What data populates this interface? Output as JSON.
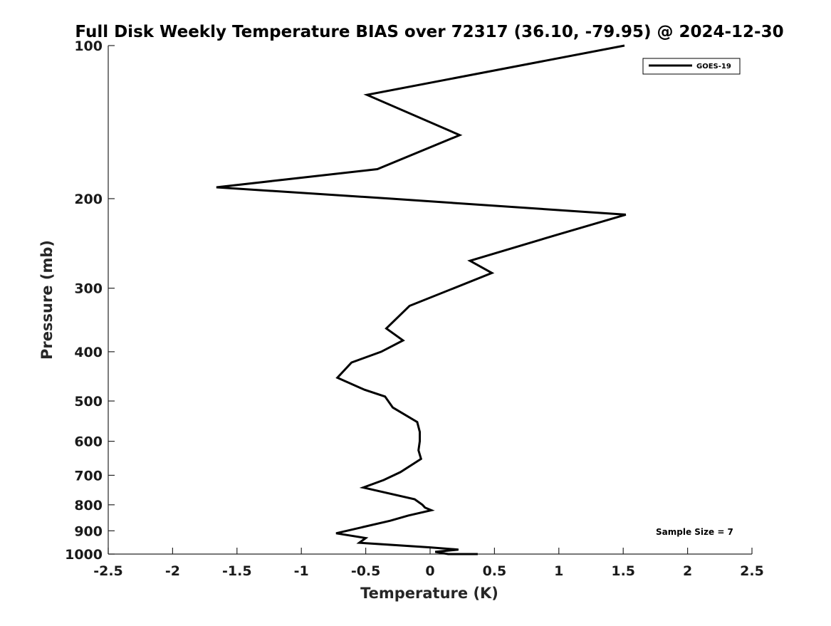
{
  "chart_data": {
    "type": "line",
    "title": "Full Disk Weekly Temperature BIAS over 72317 (36.10, -79.95) @ 2024-12-30",
    "xlabel": "Temperature (K)",
    "ylabel": "Pressure (mb)",
    "xlim": [
      -2.5,
      2.5
    ],
    "ylim": [
      100,
      1000
    ],
    "y_scale": "log",
    "y_reversed": true,
    "grid": false,
    "legend_position": "top-right",
    "x_ticks": [
      {
        "value": -2.5,
        "label": "-2.5"
      },
      {
        "value": -2,
        "label": "-2"
      },
      {
        "value": -1.5,
        "label": "-1.5"
      },
      {
        "value": -1,
        "label": "-1"
      },
      {
        "value": -0.5,
        "label": "-0.5"
      },
      {
        "value": 0,
        "label": "0"
      },
      {
        "value": 0.5,
        "label": "0.5"
      },
      {
        "value": 1,
        "label": "1"
      },
      {
        "value": 1.5,
        "label": "1.5"
      },
      {
        "value": 2,
        "label": "2"
      },
      {
        "value": 2.5,
        "label": "2.5"
      }
    ],
    "y_ticks": [
      {
        "value": 100,
        "label": "100"
      },
      {
        "value": 200,
        "label": "200"
      },
      {
        "value": 300,
        "label": "300"
      },
      {
        "value": 400,
        "label": "400"
      },
      {
        "value": 500,
        "label": "500"
      },
      {
        "value": 600,
        "label": "600"
      },
      {
        "value": 700,
        "label": "700"
      },
      {
        "value": 800,
        "label": "800"
      },
      {
        "value": 900,
        "label": "900"
      },
      {
        "value": 1000,
        "label": "1000"
      }
    ],
    "series": [
      {
        "name": "GOES-19",
        "color": "#000000",
        "temperature": [
          1.51,
          -0.49,
          0.23,
          -0.41,
          -1.66,
          -0.31,
          1.52,
          1.0,
          0.31,
          0.48,
          -0.16,
          -0.34,
          -0.21,
          -0.38,
          -0.61,
          -0.72,
          -0.51,
          -0.35,
          -0.29,
          -0.1,
          -0.08,
          -0.08,
          -0.09,
          -0.07,
          -0.23,
          -0.36,
          -0.52,
          -0.12,
          -0.06,
          -0.04,
          0.01,
          -0.17,
          -0.31,
          -0.73,
          -0.5,
          -0.55,
          0.0,
          0.22,
          0.04,
          0.14,
          0.37,
          0.27
        ],
        "pressure": [
          100,
          125,
          150,
          175,
          190,
          200,
          215,
          235,
          265,
          280,
          325,
          360,
          380,
          400,
          420,
          450,
          475,
          490,
          515,
          550,
          575,
          600,
          625,
          650,
          690,
          715,
          740,
          780,
          800,
          810,
          820,
          840,
          860,
          910,
          930,
          950,
          970,
          980,
          990,
          1000,
          1010,
          1020
        ]
      }
    ],
    "annotations": [
      {
        "text": "Sample Size = 7"
      }
    ]
  }
}
